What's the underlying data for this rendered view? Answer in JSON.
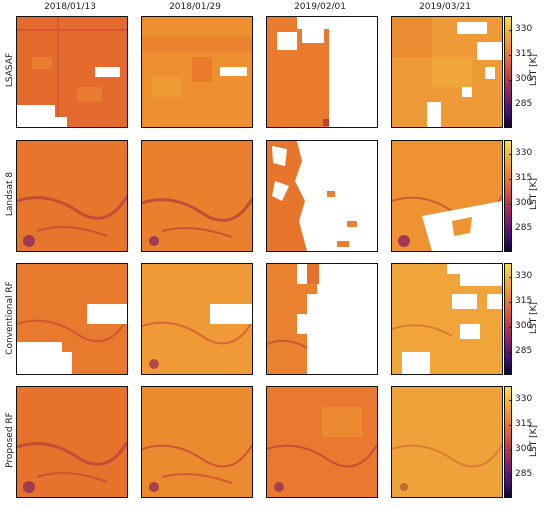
{
  "columns": [
    "2018/01/13",
    "2018/01/29",
    "2019/02/01",
    "2019/03/21"
  ],
  "rows": [
    "LSASAF",
    "Landsat 8",
    "Conventional RF",
    "Proposed RF"
  ],
  "colorbar": {
    "label": "LST [K]",
    "ticks": [
      "330",
      "315",
      "300",
      "285"
    ],
    "tick_values": [
      330,
      315,
      300,
      285
    ],
    "range": [
      275,
      336
    ],
    "colormap": "plasma-like"
  },
  "colors": {
    "orange": "#e8742c",
    "orange_light": "#ee9232",
    "yellow_orange": "#f0a53a",
    "dark_red": "#b6413a",
    "no_data": "#ffffff"
  }
}
